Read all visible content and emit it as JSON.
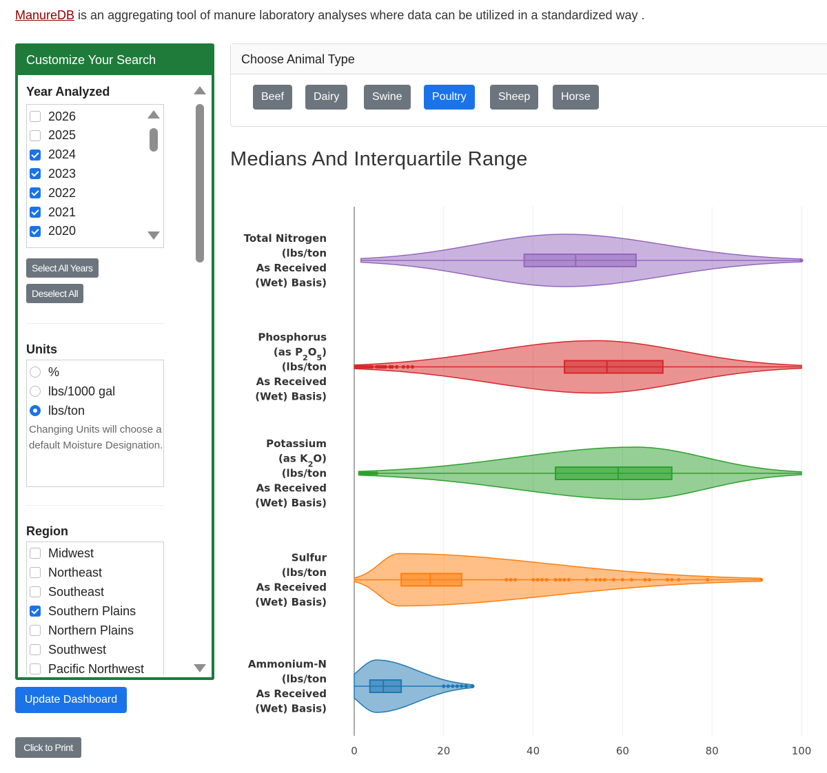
{
  "intro": {
    "link": "ManureDB",
    "text": " is an aggregating tool of manure laboratory analyses where data can be utilized in a standardized way ."
  },
  "sidebar": {
    "title": "Customize Your Search",
    "year": {
      "heading": "Year Analyzed",
      "options": [
        {
          "label": "2026",
          "checked": false
        },
        {
          "label": "2025",
          "checked": false
        },
        {
          "label": "2024",
          "checked": true
        },
        {
          "label": "2023",
          "checked": true
        },
        {
          "label": "2022",
          "checked": true
        },
        {
          "label": "2021",
          "checked": true
        },
        {
          "label": "2020",
          "checked": true
        }
      ],
      "select_all_label": "Select All Years",
      "deselect_all_label": "Deselect All"
    },
    "units": {
      "heading": "Units",
      "options": [
        {
          "label": "%",
          "selected": false
        },
        {
          "label": "lbs/1000 gal",
          "selected": false
        },
        {
          "label": "lbs/ton",
          "selected": true
        }
      ],
      "note": "Changing Units will choose a default Moisture Designation."
    },
    "region": {
      "heading": "Region",
      "options": [
        {
          "label": "Midwest",
          "checked": false
        },
        {
          "label": "Northeast",
          "checked": false
        },
        {
          "label": "Southeast",
          "checked": false
        },
        {
          "label": "Southern Plains",
          "checked": true
        },
        {
          "label": "Northern Plains",
          "checked": false
        },
        {
          "label": "Southwest",
          "checked": false
        },
        {
          "label": "Pacific Northwest",
          "checked": false
        }
      ]
    }
  },
  "update_button": "Update Dashboard",
  "print_button": "Click to Print",
  "animal": {
    "heading": "Choose Animal Type",
    "options": [
      "Beef",
      "Dairy",
      "Swine",
      "Poultry",
      "Sheep",
      "Horse"
    ],
    "selected": "Poultry"
  },
  "colors": {
    "sidebar_green": "#1e7b3a",
    "primary_blue": "#1a73e8",
    "secondary_gray": "#6c757d",
    "link_red": "#8b0000"
  },
  "chart_title": "Medians And Interquartile Range",
  "chart_data": {
    "type": "violin",
    "orientation": "horizontal",
    "xlim": [
      0,
      100
    ],
    "xticks": [
      0,
      20,
      40,
      60,
      80,
      100
    ],
    "grid": true,
    "series": [
      {
        "label_lines": [
          "Total Nitrogen",
          "(lbs/ton",
          "As Received",
          "(Wet) Basis)"
        ],
        "color": "#9467bd",
        "min": 1.5,
        "q1": 38,
        "median": 49.5,
        "q3": 63,
        "max": 100,
        "density_peak_at": 47,
        "max_halfwidth": 0.8,
        "outliers": [
          100
        ]
      },
      {
        "label_lines": [
          "Phosphorus",
          "(as P2O5)",
          "(lbs/ton",
          "As Received",
          "(Wet) Basis)"
        ],
        "color": "#d62728",
        "min": 0,
        "q1": 47,
        "median": 56.5,
        "q3": 69,
        "max": 100,
        "density_peak_at": 54,
        "max_halfwidth": 0.8,
        "outliers": [
          0.5,
          1,
          1.5,
          2,
          2.5,
          3,
          3.5,
          4,
          5,
          5.5,
          6,
          6.5,
          7,
          8,
          8.5,
          9.5,
          11,
          12,
          13
        ]
      },
      {
        "label_lines": [
          "Potassium",
          "(as K2O)",
          "(lbs/ton",
          "As Received",
          "(Wet) Basis)"
        ],
        "color": "#2ca02c",
        "min": 1,
        "q1": 45,
        "median": 59,
        "q3": 71,
        "max": 100,
        "density_peak_at": 63,
        "max_halfwidth": 0.8,
        "outliers": [
          1.5,
          2,
          2.5,
          3,
          3.5,
          4,
          4.5,
          5
        ]
      },
      {
        "label_lines": [
          "Sulfur",
          "(lbs/ton",
          "As Received",
          "(Wet) Basis)"
        ],
        "color": "#ff7f0e",
        "min": 0,
        "q1": 10.5,
        "median": 17,
        "q3": 24,
        "max": 91,
        "density_peak_at": 10,
        "max_halfwidth": 0.8,
        "outliers": [
          34,
          35,
          36,
          40,
          41,
          42,
          43,
          45,
          46,
          47,
          48,
          52,
          54,
          55,
          56,
          58,
          60,
          62,
          65,
          66,
          70,
          71,
          72.5,
          79,
          91
        ]
      },
      {
        "label_lines": [
          "Ammonium-N",
          "(lbs/ton",
          "As Received",
          "(Wet) Basis)"
        ],
        "color": "#1f77b4",
        "min": 0,
        "q1": 3.5,
        "median": 6.5,
        "q3": 10.5,
        "max": 26.5,
        "density_peak_at": 5,
        "max_halfwidth": 0.8,
        "outliers": [
          20,
          21,
          22,
          23,
          24,
          25,
          26.5
        ]
      }
    ]
  }
}
